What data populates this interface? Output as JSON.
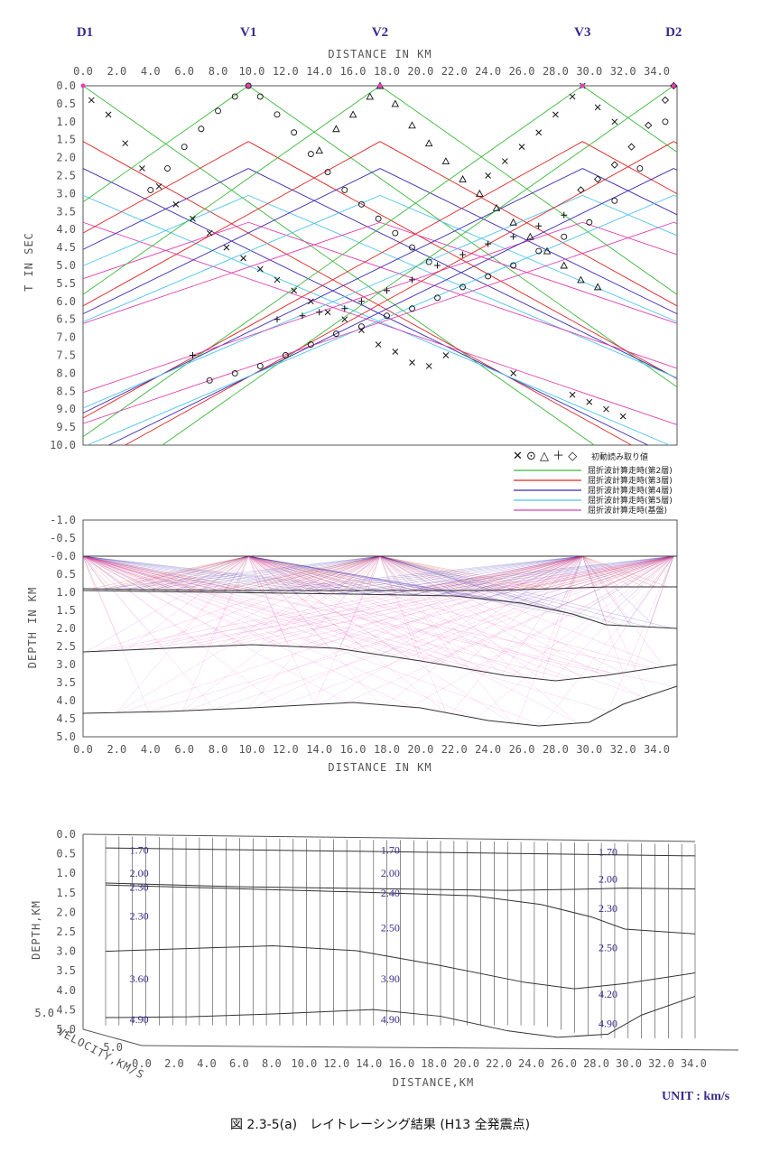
{
  "shots": [
    {
      "name": "D1",
      "x_km": 0.0
    },
    {
      "name": "V1",
      "x_km": 9.8
    },
    {
      "name": "V2",
      "x_km": 17.6
    },
    {
      "name": "V3",
      "x_km": 29.6
    },
    {
      "name": "D2",
      "x_km": 35.0
    }
  ],
  "colors": {
    "layer2": "#3cb83c",
    "layer3": "#e02424",
    "layer4": "#3a2ab0",
    "layer5": "#4cc4e8",
    "basement": "#e040b0",
    "text": "#3a2a8c"
  },
  "chart_data": [
    {
      "type": "scatter",
      "panel": "travel-time",
      "xlabel": "DISTANCE IN KM",
      "ylabel": "T IN SEC",
      "xlim": [
        0,
        35.2
      ],
      "ylim": [
        0,
        10
      ],
      "y_inverted": true,
      "x_ticks": [
        "0.0",
        "2.0",
        "4.0",
        "6.0",
        "8.0",
        "10.0",
        "12.0",
        "14.0",
        "16.0",
        "18.0",
        "20.0",
        "22.0",
        "24.0",
        "26.0",
        "28.0",
        "30.0",
        "32.0",
        "34.0"
      ],
      "y_ticks": [
        "0.0",
        "0.5",
        "1.0",
        "1.5",
        "2.0",
        "2.5",
        "3.0",
        "3.5",
        "4.0",
        "4.5",
        "5.0",
        "5.5",
        "6.0",
        "6.5",
        "7.0",
        "7.5",
        "8.0",
        "8.5",
        "9.0",
        "9.5",
        "10.0"
      ],
      "legend": {
        "picks_symbols": "✕ ⊙ △ ＋ ◇",
        "picks_label": "初動読み取り値",
        "entries": [
          {
            "label": "屈折波計算走時(第2層)",
            "color_key": "layer2"
          },
          {
            "label": "屈折波計算走時(第3層)",
            "color_key": "layer3"
          },
          {
            "label": "屈折波計算走時(第4層)",
            "color_key": "layer4"
          },
          {
            "label": "屈折波計算走時(第5層)",
            "color_key": "layer5"
          },
          {
            "label": "屈折波計算走時(基盤)",
            "color_key": "basement"
          }
        ]
      },
      "series": [
        {
          "shot": "D1",
          "marker": "x",
          "points": [
            [
              0.5,
              0.4
            ],
            [
              1.5,
              0.8
            ],
            [
              2.5,
              1.6
            ],
            [
              3.5,
              2.3
            ],
            [
              4.5,
              2.8
            ],
            [
              5.5,
              3.3
            ],
            [
              6.5,
              3.7
            ],
            [
              7.5,
              4.1
            ],
            [
              8.5,
              4.5
            ],
            [
              9.5,
              4.8
            ],
            [
              10.5,
              5.1
            ],
            [
              11.5,
              5.4
            ],
            [
              12.5,
              5.7
            ],
            [
              13.5,
              6.0
            ],
            [
              14.5,
              6.3
            ],
            [
              15.5,
              6.5
            ],
            [
              16.5,
              6.8
            ],
            [
              17.5,
              7.2
            ],
            [
              18.5,
              7.4
            ],
            [
              19.5,
              7.7
            ],
            [
              20.5,
              7.8
            ],
            [
              21.5,
              7.5
            ],
            [
              25.5,
              8.0
            ],
            [
              29.0,
              8.6
            ],
            [
              30.0,
              8.8
            ],
            [
              31.0,
              9.0
            ],
            [
              32.0,
              9.2
            ]
          ]
        },
        {
          "shot": "V1",
          "marker": "o",
          "points": [
            [
              4.0,
              2.9
            ],
            [
              5.0,
              2.3
            ],
            [
              6.0,
              1.7
            ],
            [
              7.0,
              1.2
            ],
            [
              8.0,
              0.7
            ],
            [
              9.0,
              0.3
            ],
            [
              9.8,
              0.0
            ],
            [
              10.5,
              0.3
            ],
            [
              11.5,
              0.8
            ],
            [
              12.5,
              1.3
            ],
            [
              13.5,
              1.9
            ],
            [
              14.5,
              2.4
            ],
            [
              15.5,
              2.9
            ],
            [
              16.5,
              3.3
            ],
            [
              17.5,
              3.7
            ],
            [
              18.5,
              4.1
            ],
            [
              19.5,
              4.5
            ],
            [
              20.5,
              4.9
            ],
            [
              7.5,
              8.2
            ],
            [
              9.0,
              8.0
            ],
            [
              10.5,
              7.8
            ],
            [
              12.0,
              7.5
            ],
            [
              13.5,
              7.2
            ],
            [
              15.0,
              6.9
            ],
            [
              16.5,
              6.7
            ],
            [
              18.0,
              6.4
            ],
            [
              19.5,
              6.2
            ],
            [
              21.0,
              5.9
            ],
            [
              22.5,
              5.6
            ],
            [
              24.0,
              5.3
            ],
            [
              25.5,
              5.0
            ],
            [
              27.0,
              4.6
            ],
            [
              28.5,
              4.2
            ],
            [
              30.0,
              3.8
            ],
            [
              31.5,
              3.2
            ],
            [
              33.0,
              2.3
            ],
            [
              34.5,
              1.0
            ]
          ]
        },
        {
          "shot": "V2",
          "marker": "triangle",
          "points": [
            [
              14.0,
              1.8
            ],
            [
              15.0,
              1.2
            ],
            [
              16.0,
              0.8
            ],
            [
              17.0,
              0.3
            ],
            [
              17.6,
              0.0
            ],
            [
              18.5,
              0.5
            ],
            [
              19.5,
              1.1
            ],
            [
              20.5,
              1.6
            ],
            [
              21.5,
              2.1
            ],
            [
              22.5,
              2.6
            ],
            [
              23.5,
              3.0
            ],
            [
              24.5,
              3.4
            ],
            [
              25.5,
              3.8
            ],
            [
              26.5,
              4.2
            ],
            [
              27.5,
              4.6
            ],
            [
              28.5,
              5.0
            ],
            [
              29.5,
              5.4
            ],
            [
              30.5,
              5.6
            ]
          ]
        },
        {
          "shot": "V3",
          "marker": "x",
          "points": [
            [
              24.0,
              2.5
            ],
            [
              25.0,
              2.1
            ],
            [
              26.0,
              1.7
            ],
            [
              27.0,
              1.3
            ],
            [
              28.0,
              0.8
            ],
            [
              29.0,
              0.3
            ],
            [
              29.6,
              0.0
            ],
            [
              30.5,
              0.6
            ],
            [
              31.5,
              1.0
            ]
          ]
        },
        {
          "shot": "D2",
          "marker": "diamond",
          "points": [
            [
              35.0,
              0.0
            ],
            [
              34.5,
              0.4
            ],
            [
              33.5,
              1.1
            ],
            [
              32.5,
              1.7
            ],
            [
              31.5,
              2.2
            ],
            [
              30.5,
              2.6
            ],
            [
              29.5,
              2.9
            ]
          ]
        },
        {
          "shot": "D1",
          "marker": "plus",
          "points": [
            [
              6.5,
              7.5
            ],
            [
              11.5,
              6.5
            ],
            [
              13.0,
              6.4
            ],
            [
              14.0,
              6.3
            ],
            [
              15.5,
              6.2
            ],
            [
              16.5,
              6.0
            ],
            [
              18.0,
              5.7
            ],
            [
              19.5,
              5.4
            ],
            [
              21.0,
              5.0
            ],
            [
              22.5,
              4.7
            ],
            [
              24.0,
              4.4
            ],
            [
              25.5,
              4.2
            ],
            [
              27.0,
              3.9
            ],
            [
              28.5,
              3.6
            ]
          ]
        }
      ]
    },
    {
      "type": "line",
      "panel": "ray-tracing",
      "xlabel": "DISTANCE IN KM",
      "ylabel": "DEPTH IN KM",
      "xlim": [
        0,
        35.2
      ],
      "ylim": [
        -1.0,
        5.0
      ],
      "y_inverted": true,
      "x_ticks": [
        "0.0",
        "2.0",
        "4.0",
        "6.0",
        "8.0",
        "10.0",
        "12.0",
        "14.0",
        "16.0",
        "18.0",
        "20.0",
        "22.0",
        "24.0",
        "26.0",
        "28.0",
        "30.0",
        "32.0",
        "34.0"
      ],
      "y_ticks": [
        "-1.0",
        "-0.5",
        "-0.0",
        "0.5",
        "1.0",
        "1.5",
        "2.0",
        "2.5",
        "3.0",
        "3.5",
        "4.0",
        "4.5",
        "5.0"
      ],
      "boundaries": [
        {
          "name": "surface",
          "x": [
            0,
            35.2
          ],
          "y": [
            0.0,
            0.0
          ]
        },
        {
          "name": "layer2-base",
          "x": [
            0,
            8,
            16,
            24,
            28,
            31,
            35.2
          ],
          "y": [
            0.9,
            0.95,
            0.95,
            0.95,
            0.9,
            0.85,
            0.85
          ]
        },
        {
          "name": "layer3-base",
          "x": [
            0,
            8,
            16,
            22,
            26,
            29,
            31,
            35.2
          ],
          "y": [
            0.95,
            1.0,
            1.05,
            1.1,
            1.3,
            1.6,
            1.9,
            2.0
          ]
        },
        {
          "name": "layer4-base",
          "x": [
            0,
            5,
            10,
            15,
            20,
            25,
            28,
            31,
            35.2
          ],
          "y": [
            2.65,
            2.55,
            2.45,
            2.55,
            2.9,
            3.3,
            3.45,
            3.3,
            3.0
          ]
        },
        {
          "name": "basement-top",
          "x": [
            0,
            5,
            10,
            16,
            20,
            24,
            27,
            30,
            32,
            35.2
          ],
          "y": [
            4.35,
            4.3,
            4.2,
            4.05,
            4.2,
            4.55,
            4.7,
            4.6,
            4.1,
            3.6
          ]
        }
      ]
    },
    {
      "type": "table",
      "panel": "velocity-model",
      "xlabel": "DISTANCE,KM",
      "ylabel": "DEPTH,KM",
      "zlabel": "VELOCITY,KM/S",
      "x_ticks": [
        "0.0",
        "2.0",
        "4.0",
        "6.0",
        "8.0",
        "10.0",
        "12.0",
        "14.0",
        "16.0",
        "18.0",
        "20.0",
        "22.0",
        "24.0",
        "26.0",
        "28.0",
        "30.0",
        "32.0",
        "34.0"
      ],
      "y_ticks": [
        "0.0",
        "0.5",
        "1.0",
        "1.5",
        "2.0",
        "2.5",
        "3.0",
        "3.5",
        "4.0",
        "4.5",
        "5.0"
      ],
      "z_ticks": [
        "5.0",
        "5.0"
      ],
      "velocity_labels": [
        {
          "value": "1.70",
          "x_km": 2.0,
          "depth": 0.4
        },
        {
          "value": "1.70",
          "x_km": 17.0,
          "depth": 0.4
        },
        {
          "value": "1.70",
          "x_km": 30.0,
          "depth": 0.45
        },
        {
          "value": "2.00",
          "x_km": 2.0,
          "depth": 1.0
        },
        {
          "value": "2.00",
          "x_km": 17.0,
          "depth": 1.0
        },
        {
          "value": "2.00",
          "x_km": 30.0,
          "depth": 1.15
        },
        {
          "value": "2.30",
          "x_km": 2.0,
          "depth": 1.35
        },
        {
          "value": "2.40",
          "x_km": 17.0,
          "depth": 1.5
        },
        {
          "value": "2.30",
          "x_km": 30.0,
          "depth": 1.9
        },
        {
          "value": "2.30",
          "x_km": 2.0,
          "depth": 2.1
        },
        {
          "value": "2.50",
          "x_km": 17.0,
          "depth": 2.4
        },
        {
          "value": "2.50",
          "x_km": 30.0,
          "depth": 2.9
        },
        {
          "value": "3.60",
          "x_km": 2.0,
          "depth": 3.7
        },
        {
          "value": "3.90",
          "x_km": 17.0,
          "depth": 3.7
        },
        {
          "value": "4.20",
          "x_km": 30.0,
          "depth": 4.1
        },
        {
          "value": "4.90",
          "x_km": 2.0,
          "depth": 4.75
        },
        {
          "value": "4.90",
          "x_km": 17.0,
          "depth": 4.75
        },
        {
          "value": "4.90",
          "x_km": 30.0,
          "depth": 4.85
        }
      ]
    }
  ],
  "caption": "図 2.3-5(a)　レイトレーシング結果 (H13 全発震点)",
  "unit_label": "UNIT : km/s"
}
